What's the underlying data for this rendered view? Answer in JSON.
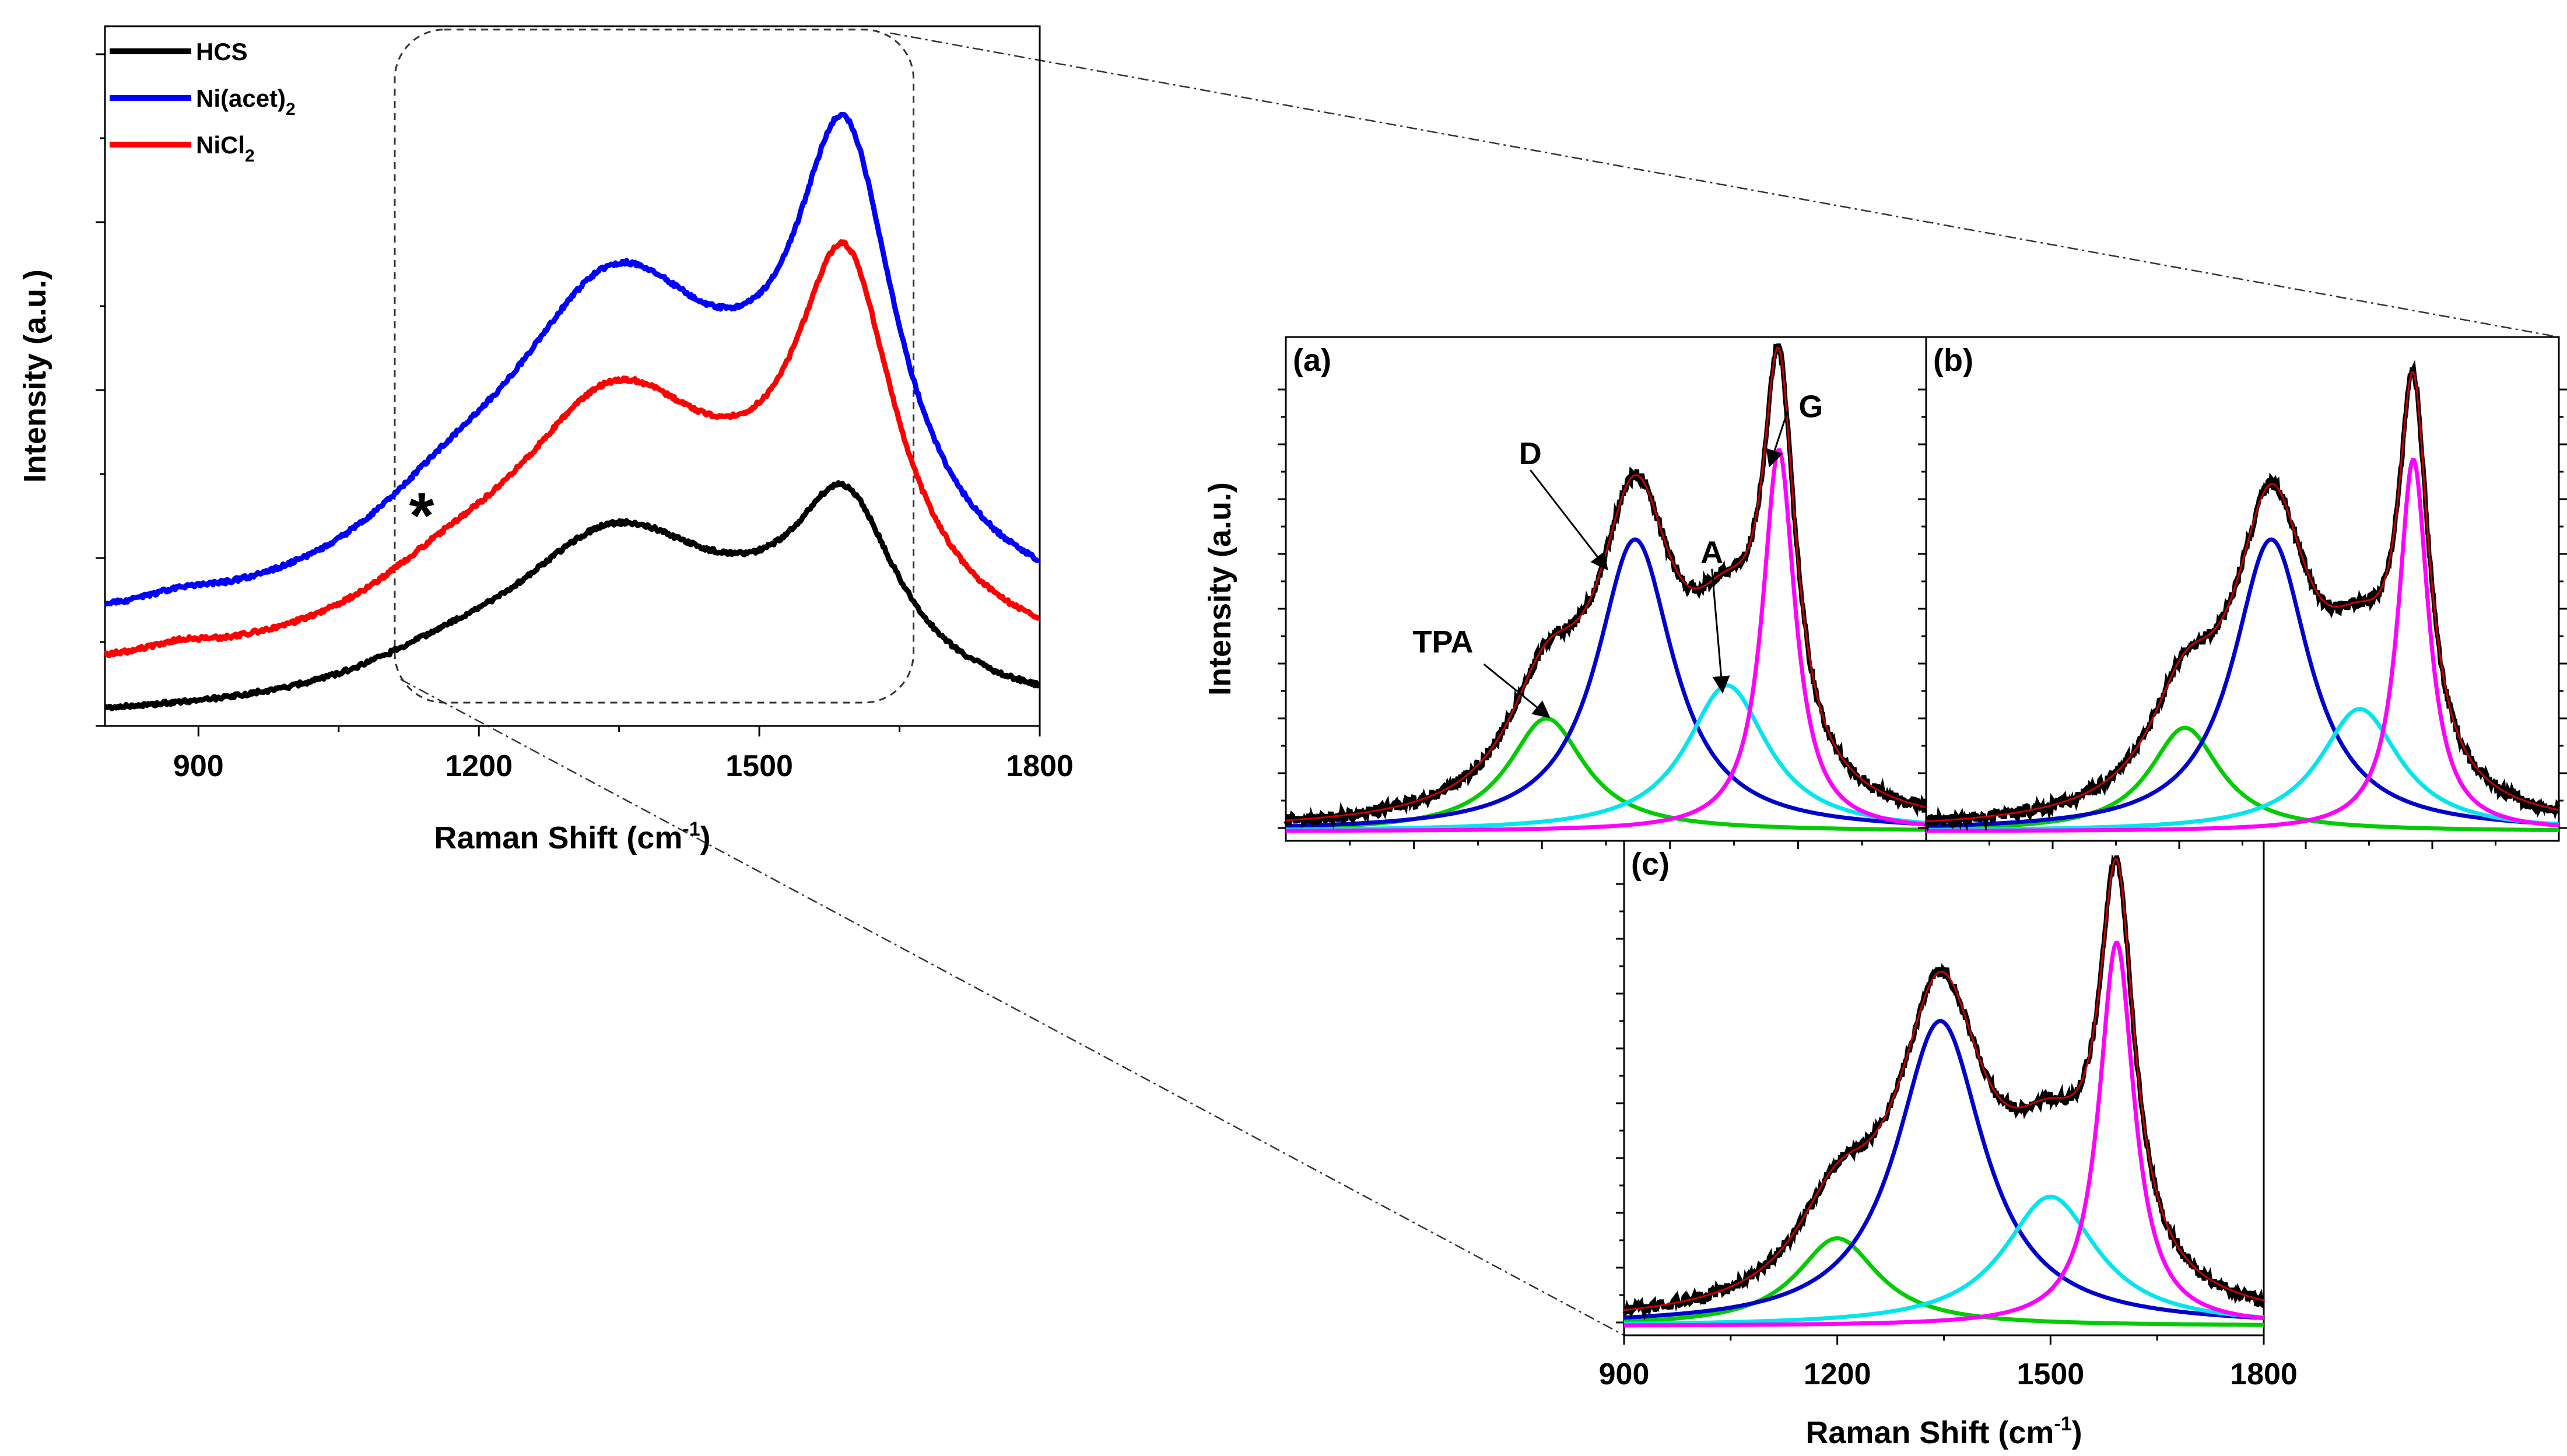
{
  "chart_data": [
    {
      "id": "main",
      "type": "line",
      "xlabel_main": "Raman Shift (cm",
      "xlabel_sup": "-1",
      "xlabel_end": ")",
      "ylabel": "Intensity (a.u.)",
      "xlim": [
        800,
        1800
      ],
      "ylim": [
        0,
        1.05
      ],
      "x_ticks": [
        900,
        1200,
        1500,
        1800
      ],
      "x_tick_labels": [
        "900",
        "1200",
        "1500",
        "1800"
      ],
      "legend_position": "top-left",
      "legend": [
        {
          "key": "HCS",
          "label": "HCS",
          "sub": "",
          "color": "#000000"
        },
        {
          "key": "Ni(acet)2",
          "label": "Ni(acet)",
          "sub": "2",
          "color": "#0000ff"
        },
        {
          "key": "NiCl2",
          "label": "NiCl",
          "sub": "2",
          "color": "#ff0000"
        }
      ],
      "annotation": {
        "text": "*",
        "x": 1150,
        "y": 0.335
      },
      "zoom_region": {
        "x": [
          1110,
          1665
        ],
        "y": [
          0.035,
          1.045
        ]
      },
      "series": [
        {
          "name": "HCS",
          "color": "#000000",
          "offset": 0.005,
          "peaks": [
            {
              "center": 1345,
              "height": 0.255,
              "width": 145
            },
            {
              "center": 1592,
              "height": 0.26,
              "width": 68
            },
            {
              "center": 1160,
              "height": 0.035,
              "width": 110
            },
            {
              "center": 1500,
              "height": 0.045,
              "width": 120
            }
          ]
        },
        {
          "name": "NiCl2",
          "color": "#ff0000",
          "offset": 0.07,
          "peaks": [
            {
              "center": 1345,
              "height": 0.375,
              "width": 145
            },
            {
              "center": 1592,
              "height": 0.515,
              "width": 66
            },
            {
              "center": 1165,
              "height": 0.06,
              "width": 110
            },
            {
              "center": 1500,
              "height": 0.06,
              "width": 120
            },
            {
              "center": 880,
              "height": 0.012,
              "width": 40
            }
          ]
        },
        {
          "name": "Ni(acet)2",
          "color": "#0000ff",
          "offset": 0.135,
          "peaks": [
            {
              "center": 1345,
              "height": 0.47,
              "width": 150
            },
            {
              "center": 1592,
              "height": 0.6,
              "width": 66
            },
            {
              "center": 1165,
              "height": 0.075,
              "width": 110
            },
            {
              "center": 1500,
              "height": 0.075,
              "width": 120
            },
            {
              "center": 880,
              "height": 0.012,
              "width": 40
            }
          ]
        }
      ]
    },
    {
      "id": "a",
      "type": "line",
      "panel_label": "(a)",
      "ylabel": "Intensity (a.u.)",
      "xlim": [
        750,
        1850
      ],
      "ylim": [
        -0.02,
        1.05
      ],
      "tick_count_x": 5,
      "annotations": [
        {
          "text": "TPA",
          "x": 1020,
          "y": 0.38
        },
        {
          "text": "D",
          "x": 1170,
          "y": 0.78
        },
        {
          "text": "A",
          "x": 1482,
          "y": 0.57
        },
        {
          "text": "G",
          "x": 1652,
          "y": 0.88
        }
      ],
      "components": [
        {
          "name": "TPA",
          "color": "#00cc00",
          "center": 1198,
          "height": 0.24,
          "width": 80
        },
        {
          "name": "D",
          "color": "#0000cc",
          "center": 1350,
          "height": 0.62,
          "width": 80
        },
        {
          "name": "A",
          "color": "#00e5ee",
          "center": 1508,
          "height": 0.31,
          "width": 85
        },
        {
          "name": "G",
          "color": "#ff00ff",
          "center": 1597,
          "height": 0.81,
          "width": 34
        }
      ]
    },
    {
      "id": "b",
      "type": "line",
      "panel_label": "(b)",
      "xlim": [
        750,
        1850
      ],
      "ylim": [
        -0.02,
        1.05
      ],
      "tick_count_x": 5,
      "components": [
        {
          "name": "TPA",
          "color": "#00cc00",
          "center": 1200,
          "height": 0.22,
          "width": 75
        },
        {
          "name": "D",
          "color": "#0000cc",
          "center": 1350,
          "height": 0.62,
          "width": 80
        },
        {
          "name": "A",
          "color": "#00e5ee",
          "center": 1504,
          "height": 0.26,
          "width": 85
        },
        {
          "name": "G",
          "color": "#ff00ff",
          "center": 1597,
          "height": 0.79,
          "width": 32
        }
      ]
    },
    {
      "id": "c",
      "type": "line",
      "panel_label": "(c)",
      "xlabel_main": "Raman Shift (cm",
      "xlabel_sup": "-1",
      "xlabel_end": ")",
      "xlim": [
        900,
        1800
      ],
      "ylim": [
        -0.02,
        1.05
      ],
      "x_ticks": [
        900,
        1200,
        1500,
        1800
      ],
      "x_tick_labels": [
        "900",
        "1200",
        "1500",
        "1800"
      ],
      "components": [
        {
          "name": "TPA",
          "color": "#00cc00",
          "center": 1200,
          "height": 0.19,
          "width": 70
        },
        {
          "name": "D",
          "color": "#0000cc",
          "center": 1345,
          "height": 0.66,
          "width": 75
        },
        {
          "name": "A",
          "color": "#00e5ee",
          "center": 1500,
          "height": 0.28,
          "width": 80
        },
        {
          "name": "G",
          "color": "#ff00ff",
          "center": 1593,
          "height": 0.83,
          "width": 30
        }
      ]
    }
  ]
}
